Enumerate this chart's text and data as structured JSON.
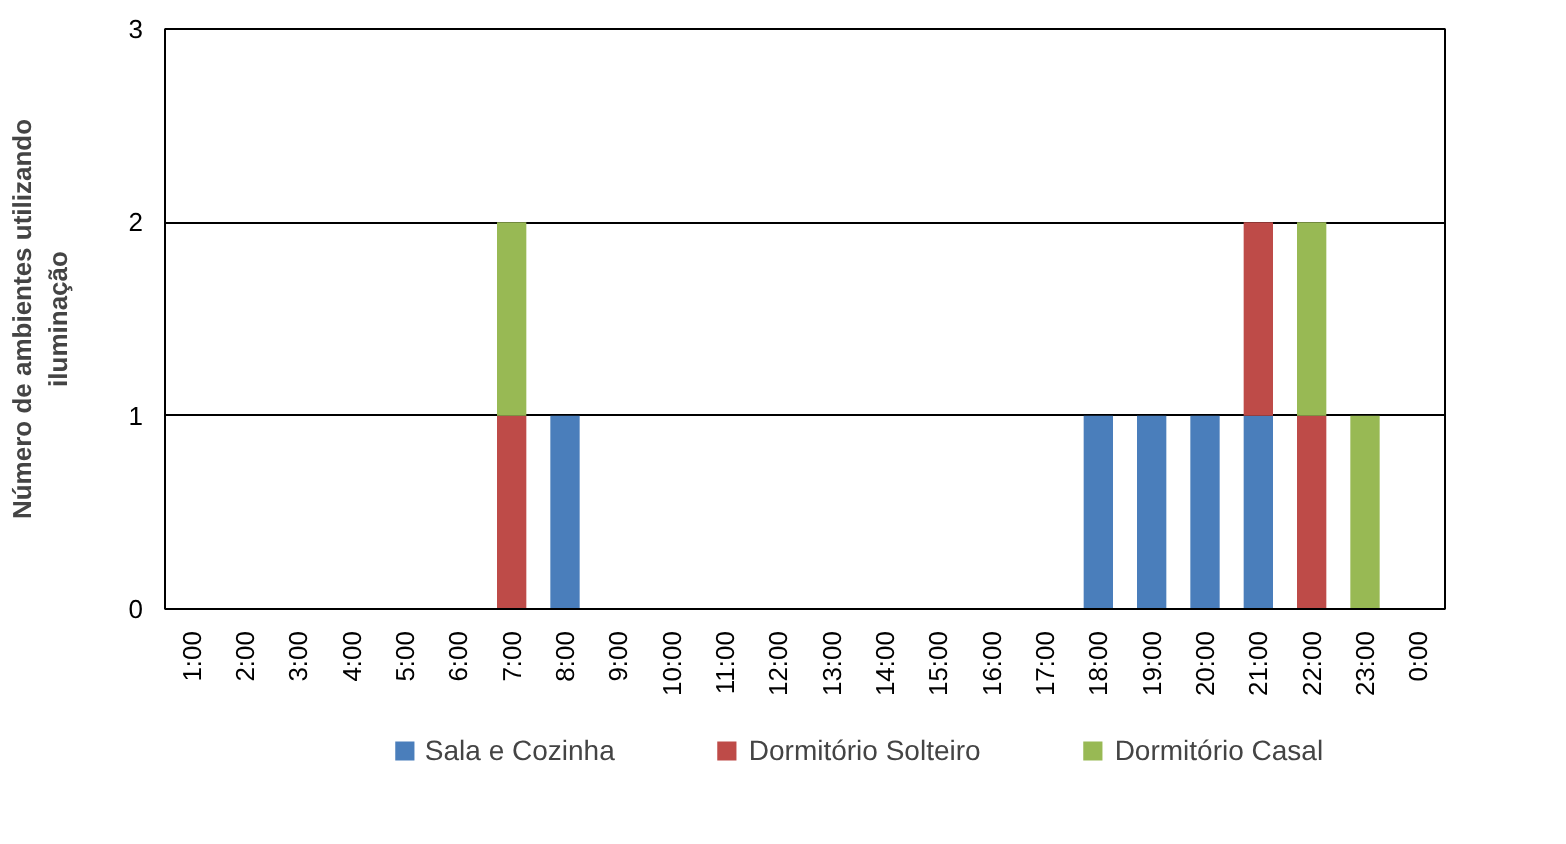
{
  "chart_data": {
    "type": "bar",
    "stacked": true,
    "ylabel": "Número de ambientes utilizando iluminação",
    "categories": [
      "1:00",
      "2:00",
      "3:00",
      "4:00",
      "5:00",
      "6:00",
      "7:00",
      "8:00",
      "9:00",
      "10:00",
      "11:00",
      "12:00",
      "13:00",
      "14:00",
      "15:00",
      "16:00",
      "17:00",
      "18:00",
      "19:00",
      "20:00",
      "21:00",
      "22:00",
      "23:00",
      "0:00"
    ],
    "series": [
      {
        "name": "Sala e Cozinha",
        "color": "#4a7ebb",
        "values": [
          0,
          0,
          0,
          0,
          0,
          0,
          0,
          1,
          0,
          0,
          0,
          0,
          0,
          0,
          0,
          0,
          0,
          1,
          1,
          1,
          1,
          0,
          0,
          0
        ]
      },
      {
        "name": "Dormitório Solteiro",
        "color": "#be4b48",
        "values": [
          0,
          0,
          0,
          0,
          0,
          0,
          1,
          0,
          0,
          0,
          0,
          0,
          0,
          0,
          0,
          0,
          0,
          0,
          0,
          0,
          1,
          1,
          0,
          0
        ]
      },
      {
        "name": "Dormitório Casal",
        "color": "#98b954",
        "values": [
          0,
          0,
          0,
          0,
          0,
          0,
          1,
          0,
          0,
          0,
          0,
          0,
          0,
          0,
          0,
          0,
          0,
          0,
          0,
          0,
          0,
          1,
          1,
          0
        ]
      }
    ],
    "ylim": [
      0,
      3
    ],
    "yticks": [
      0,
      1,
      2,
      3
    ],
    "grid": "y",
    "legend": "bottom"
  }
}
